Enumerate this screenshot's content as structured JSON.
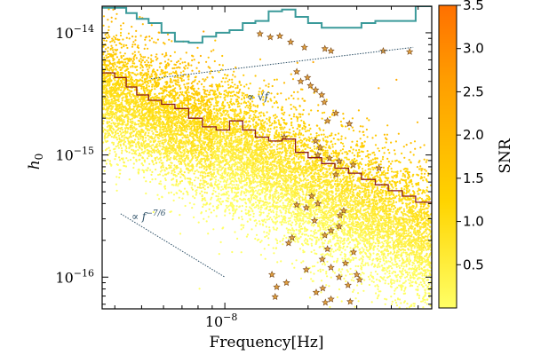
{
  "chart_data": {
    "type": "scatter",
    "xlabel": "Frequency[Hz]",
    "ylabel": "h0",
    "ylabel_main": "h",
    "ylabel_sub": "0",
    "x_scale": "log",
    "y_scale": "log",
    "xlim": [
      3.6e-09,
      5.6e-08
    ],
    "ylim": [
      5.5e-17,
      1.65e-14
    ],
    "x_ticks": [
      {
        "value": 1e-08,
        "label_base": "10",
        "label_exp": "−8"
      }
    ],
    "y_ticks": [
      {
        "value": 1e-14,
        "label_base": "10",
        "label_exp": "−14"
      },
      {
        "value": 1e-15,
        "label_base": "10",
        "label_exp": "−15"
      },
      {
        "value": 1e-16,
        "label_base": "10",
        "label_exp": "−16"
      }
    ],
    "colorbar": {
      "label": "SNR",
      "range": [
        0,
        3.5
      ],
      "ticks": [
        "0.5",
        "1.0",
        "1.5",
        "2.0",
        "2.5",
        "3.0",
        "3.5"
      ],
      "tick_values": [
        0.5,
        1.0,
        1.5,
        2.0,
        2.5,
        3.0,
        3.5
      ],
      "colors": [
        "#ffff66",
        "#ffd400",
        "#ff9e00",
        "#ff7000"
      ]
    },
    "annotations": [
      {
        "text": "∝ √f",
        "x": 7.2e-09,
        "y": 2.2e-15
      },
      {
        "text": "∝ f^−7/6",
        "x": 4.2e-09,
        "y": 4e-16
      }
    ],
    "reference_lines": [
      {
        "name": "sqrt-f",
        "x": [
          5.4e-09,
          4.8e-08
        ],
        "y": [
          4.2e-15,
          7.6e-15
        ],
        "color": "#2c4f66",
        "style": "dotted"
      },
      {
        "name": "f^-7/6",
        "x": [
          4.2e-09,
          1e-08
        ],
        "y": [
          3.3e-16,
          1e-16
        ],
        "color": "#2c4f66",
        "style": "dotted"
      }
    ],
    "series": [
      {
        "kind": "step",
        "color": "#3a9a9a",
        "x_edges": [
          3.6e-09,
          4e-09,
          4.4e-09,
          4.8e-09,
          5.3e-09,
          5.9e-09,
          6.6e-09,
          7.4e-09,
          8.3e-09,
          9.3e-09,
          1.04e-08,
          1.16e-08,
          1.29e-08,
          1.44e-08,
          1.61e-08,
          1.8e-08,
          2e-08,
          2.24e-08,
          2.5e-08,
          2.8e-08,
          3.12e-08,
          3.5e-08,
          3.9e-08,
          4.38e-08,
          4.9e-08,
          5.6e-08
        ],
        "values": [
          1.6e-14,
          1.6e-14,
          1.45e-14,
          1.3e-14,
          1.2e-14,
          1e-14,
          8.5e-15,
          8.3e-15,
          9.3e-15,
          1e-14,
          1.05e-14,
          1.2e-14,
          1.25e-14,
          1.5e-14,
          1.55e-14,
          1.35e-14,
          1.2e-14,
          1.1e-14,
          1.1e-14,
          1.1e-14,
          1.2e-14,
          1.25e-14,
          1.25e-14,
          1.25e-14,
          1.65e-14
        ]
      },
      {
        "kind": "step",
        "color": "#8b1a1a",
        "x_edges": [
          3.6e-09,
          4e-09,
          4.4e-09,
          4.8e-09,
          5.3e-09,
          5.9e-09,
          6.6e-09,
          7.4e-09,
          8.3e-09,
          9.3e-09,
          1.04e-08,
          1.16e-08,
          1.29e-08,
          1.44e-08,
          1.61e-08,
          1.8e-08,
          2e-08,
          2.24e-08,
          2.5e-08,
          2.8e-08,
          3.12e-08,
          3.5e-08,
          3.9e-08,
          4.38e-08,
          4.9e-08,
          5.6e-08
        ],
        "values": [
          4.7e-15,
          4.3e-15,
          3.6e-15,
          3.1e-15,
          2.8e-15,
          2.6e-15,
          2.4e-15,
          2e-15,
          1.7e-15,
          1.6e-15,
          1.9e-15,
          1.6e-15,
          1.4e-15,
          1.3e-15,
          1.35e-15,
          1.05e-15,
          9.5e-16,
          8.5e-16,
          7.8e-16,
          7.1e-16,
          6.3e-16,
          5.7e-16,
          5.1e-16,
          4.6e-16,
          4.1e-16
        ]
      },
      {
        "kind": "scatter",
        "marker": "star",
        "color": "#e0a040",
        "points": [
          [
            1.34e-08,
            9.8e-15
          ],
          [
            1.46e-08,
            9.2e-15
          ],
          [
            1.58e-08,
            9.4e-15
          ],
          [
            1.73e-08,
            8.4e-15
          ],
          [
            1.94e-08,
            7.6e-15
          ],
          [
            2.3e-08,
            7.4e-15
          ],
          [
            2.42e-08,
            7.1e-15
          ],
          [
            3.74e-08,
            7.1e-15
          ],
          [
            4.66e-08,
            7e-15
          ],
          [
            1.82e-08,
            4.8e-15
          ],
          [
            1.99e-08,
            4.3e-15
          ],
          [
            1.88e-08,
            4e-15
          ],
          [
            2.04e-08,
            3.7e-15
          ],
          [
            2.13e-08,
            3.4e-15
          ],
          [
            2.24e-08,
            3.1e-15
          ],
          [
            2.29e-08,
            2.7e-15
          ],
          [
            2.52e-08,
            2.2e-15
          ],
          [
            2.35e-08,
            1.9e-15
          ],
          [
            2.82e-08,
            1.8e-15
          ],
          [
            1.64e-08,
            1.4e-15
          ],
          [
            2.13e-08,
            1.3e-15
          ],
          [
            2.21e-08,
            1.15e-15
          ],
          [
            2.17e-08,
            1e-15
          ],
          [
            2.39e-08,
            9.4e-16
          ],
          [
            2.59e-08,
            8.9e-16
          ],
          [
            2.91e-08,
            8.3e-16
          ],
          [
            3.61e-08,
            7.8e-16
          ],
          [
            2.52e-08,
            6.9e-16
          ],
          [
            2.06e-08,
            4.6e-16
          ],
          [
            2.17e-08,
            4e-16
          ],
          [
            1.82e-08,
            3.9e-16
          ],
          [
            1.97e-08,
            3.7e-16
          ],
          [
            2.69e-08,
            3.5e-16
          ],
          [
            2.61e-08,
            3.2e-16
          ],
          [
            2.11e-08,
            2.9e-16
          ],
          [
            2.59e-08,
            2.6e-16
          ],
          [
            2.42e-08,
            2.4e-16
          ],
          [
            2.3e-08,
            2.2e-16
          ],
          [
            1.75e-08,
            2.1e-16
          ],
          [
            1.7e-08,
            1.9e-16
          ],
          [
            2.35e-08,
            1.7e-16
          ],
          [
            2.92e-08,
            1.6e-16
          ],
          [
            2.25e-08,
            1.4e-16
          ],
          [
            2.73e-08,
            1.3e-16
          ],
          [
            2.42e-08,
            1.2e-16
          ],
          [
            1.97e-08,
            1.15e-16
          ],
          [
            1.48e-08,
            1.05e-16
          ],
          [
            2.59e-08,
            1e-16
          ],
          [
            3e-08,
            1.05e-16
          ],
          [
            3.07e-08,
            9.5e-17
          ],
          [
            1.67e-08,
            9e-17
          ],
          [
            2.79e-08,
            8.6e-17
          ],
          [
            1.54e-08,
            8.3e-17
          ],
          [
            2.26e-08,
            8.1e-17
          ],
          [
            2.14e-08,
            7.5e-17
          ],
          [
            1.52e-08,
            6.9e-17
          ],
          [
            2.42e-08,
            6.6e-17
          ],
          [
            2.84e-08,
            6.3e-17
          ],
          [
            2.31e-08,
            6.2e-17
          ]
        ]
      },
      {
        "kind": "scatter",
        "marker": "dot",
        "color_by": "SNR",
        "count": 11000,
        "trend": "density band following h ∝ f^(-7/6); mean log10 h ≈ -14.47 - 1.05·log10(f/3.6e-9)",
        "snr_range": [
          0,
          3.5
        ]
      }
    ]
  }
}
